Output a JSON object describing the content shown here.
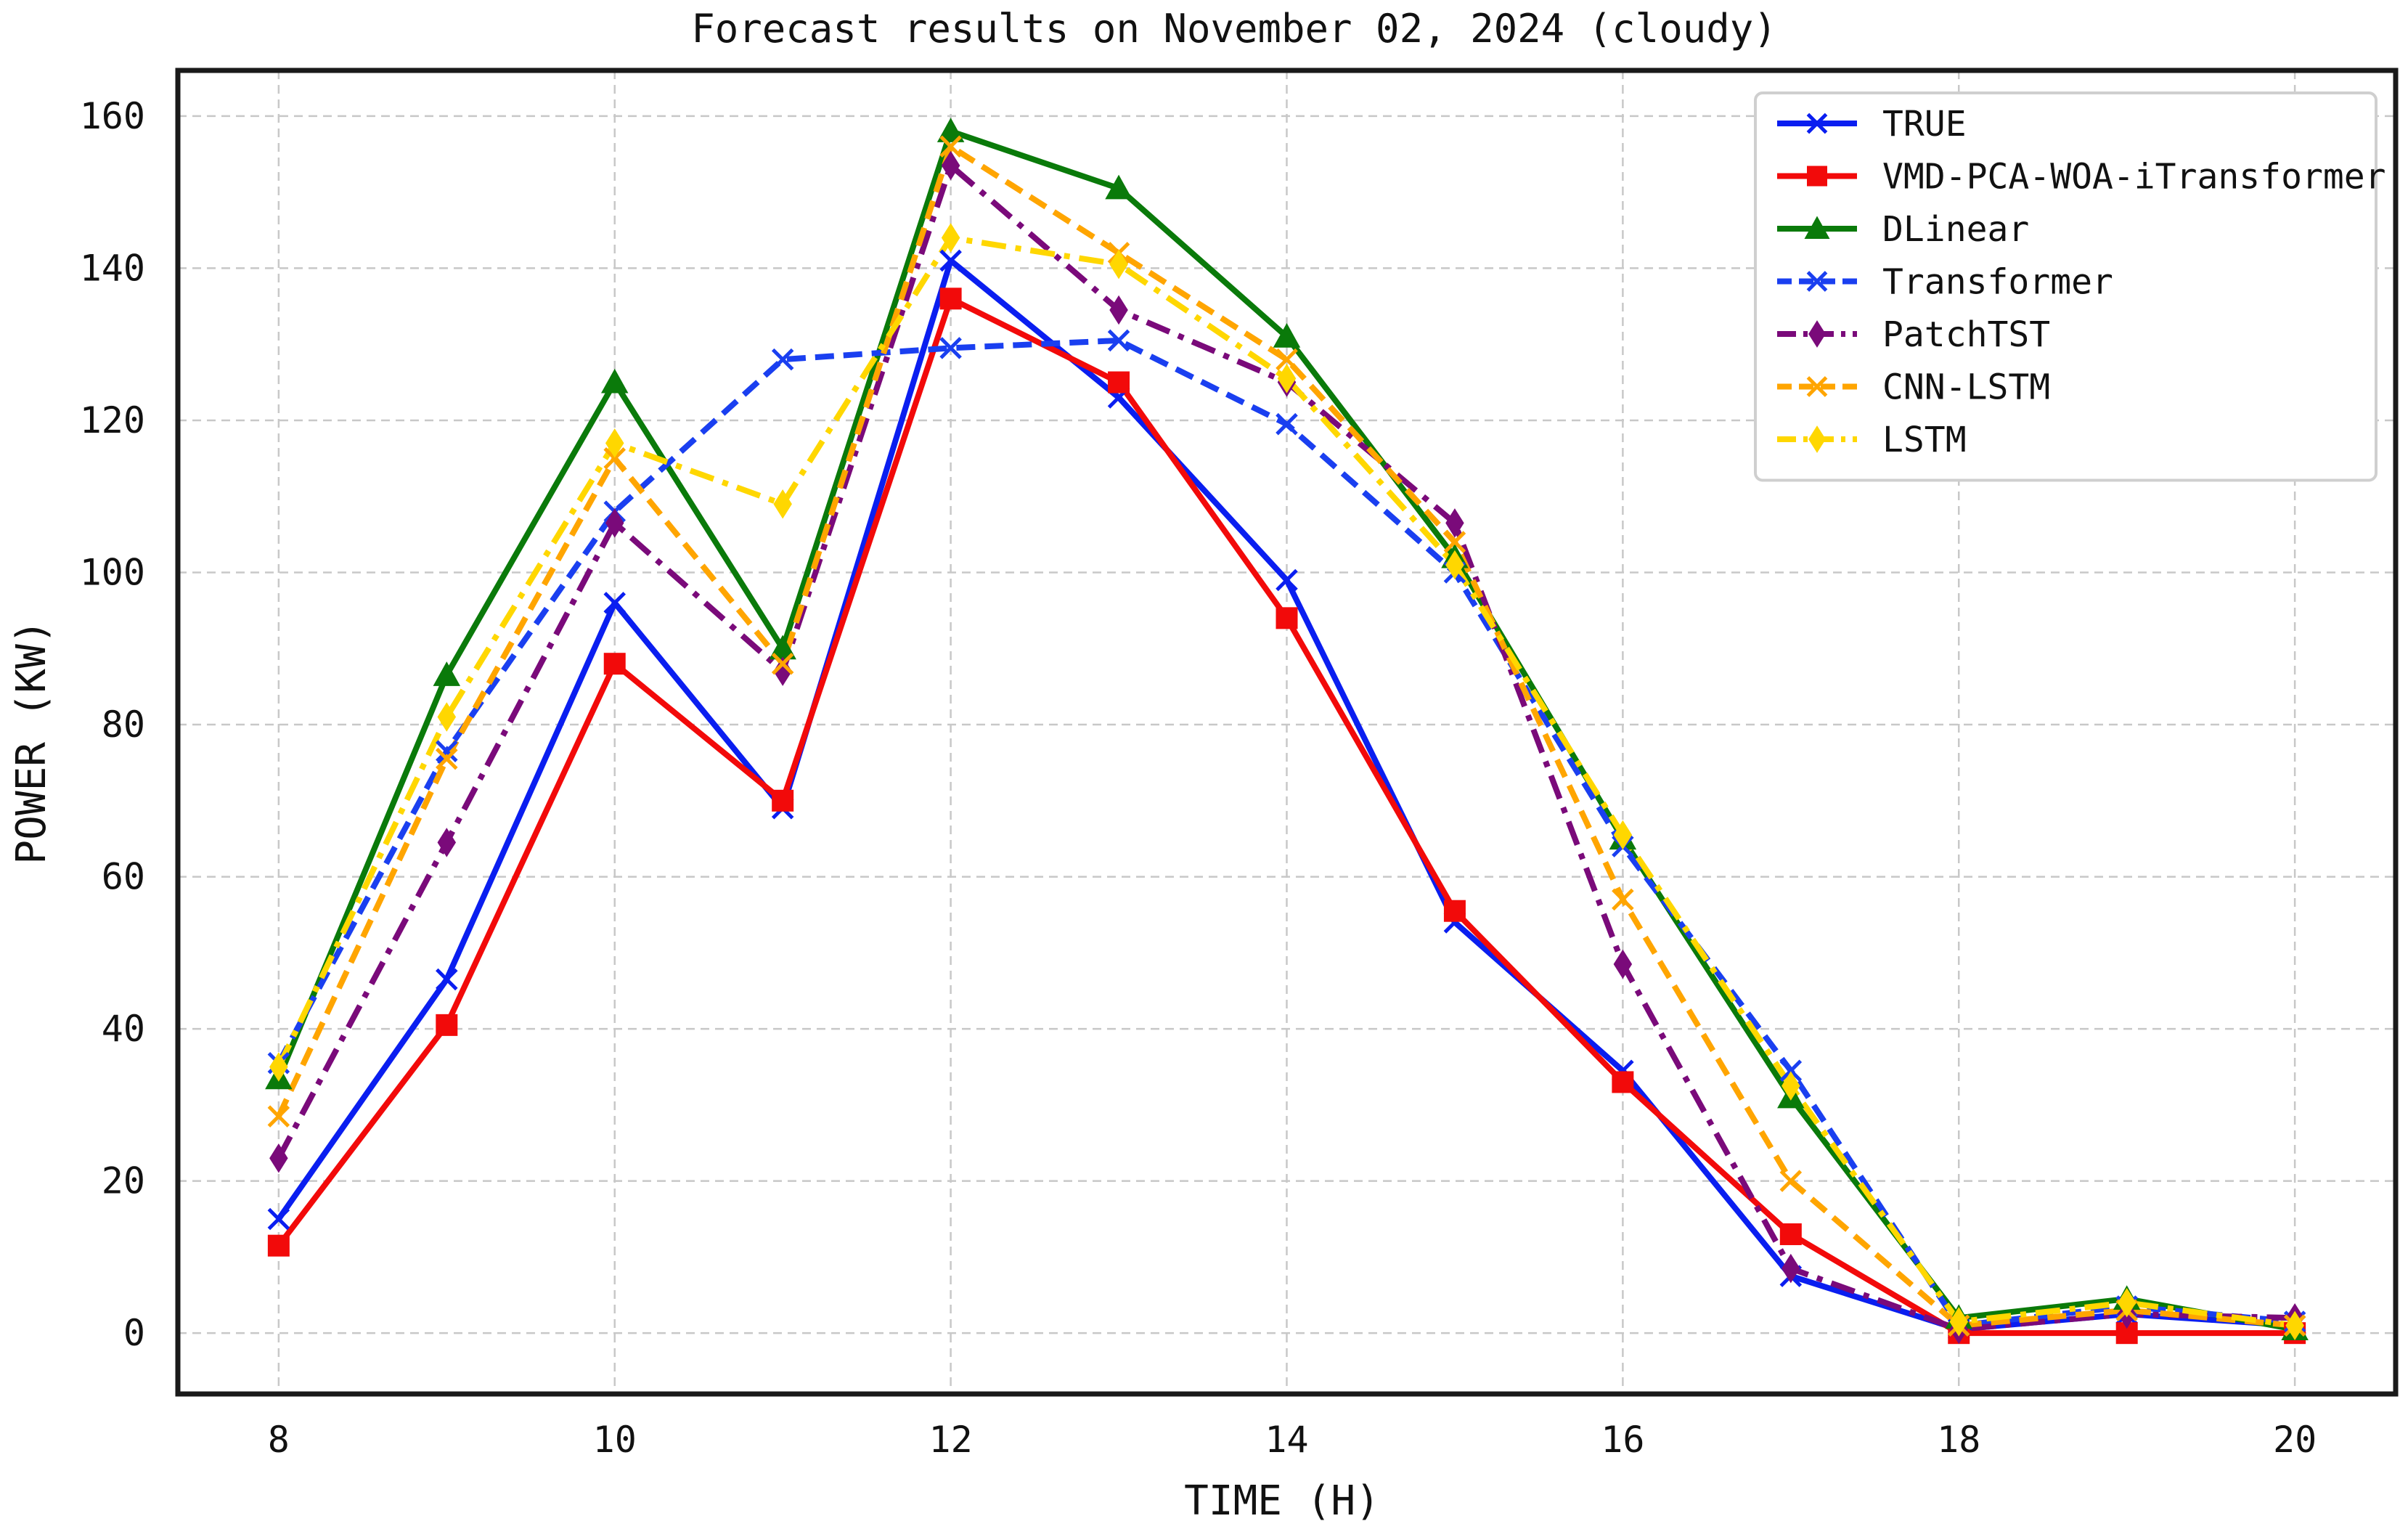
{
  "chart_data": {
    "type": "line",
    "title": "Forecast results on November 02, 2024 (cloudy)",
    "xlabel": "TIME (H)",
    "ylabel": "POWER (KW)",
    "x": [
      8,
      9,
      10,
      11,
      12,
      13,
      14,
      15,
      16,
      17,
      18,
      19,
      20
    ],
    "xlim": [
      7.4,
      20.6
    ],
    "ylim": [
      -8,
      166
    ],
    "xticks": [
      "8",
      "10",
      "12",
      "14",
      "16",
      "18",
      "20"
    ],
    "yticks": [
      "0",
      "20",
      "40",
      "60",
      "80",
      "100",
      "120",
      "140",
      "160"
    ],
    "grid": true,
    "legend_position": "top-right",
    "series": [
      {
        "name": "TRUE",
        "color": "#0a1ef0",
        "dash": "solid",
        "marker": "x",
        "values": [
          15,
          46.5,
          96,
          69,
          141,
          123,
          99,
          54,
          34.5,
          7.5,
          0.5,
          2.5,
          1
        ]
      },
      {
        "name": "VMD-PCA-WOA-iTransformer",
        "color": "#f20a0a",
        "dash": "solid",
        "marker": "square",
        "values": [
          11.5,
          40.5,
          88,
          70,
          136,
          125,
          94,
          55.5,
          33,
          13,
          0,
          0,
          0
        ]
      },
      {
        "name": "DLinear",
        "color": "#0a7a0a",
        "dash": "solid",
        "marker": "triangle",
        "values": [
          33.5,
          86.5,
          125,
          90,
          158,
          150.5,
          131,
          102,
          65,
          31,
          2,
          4.5,
          0.5
        ]
      },
      {
        "name": "Transformer",
        "color": "#1a3ff0",
        "dash": "dashed",
        "marker": "x",
        "values": [
          35.5,
          76.5,
          108,
          128,
          129.5,
          130.5,
          119.5,
          100,
          64,
          34.5,
          1,
          3.5,
          1.5
        ]
      },
      {
        "name": "PatchTST",
        "color": "#7a0a7a",
        "dash": "dashdot",
        "marker": "diamond",
        "values": [
          23,
          64.5,
          106.5,
          87,
          153.5,
          134.5,
          125,
          106.5,
          48.5,
          8.5,
          0.5,
          2.5,
          2
        ]
      },
      {
        "name": "CNN-LSTM",
        "color": "#ffa500",
        "dash": "dashed",
        "marker": "x",
        "values": [
          28.5,
          75.5,
          115,
          88,
          156,
          142,
          128,
          104,
          57,
          20,
          1,
          3,
          1
        ]
      },
      {
        "name": "LSTM",
        "color": "#ffd700",
        "dash": "dashdot",
        "marker": "diamond",
        "values": [
          35,
          81,
          117,
          109,
          144,
          140.5,
          125.5,
          101,
          65.5,
          32.5,
          1.5,
          4,
          1
        ]
      }
    ]
  }
}
